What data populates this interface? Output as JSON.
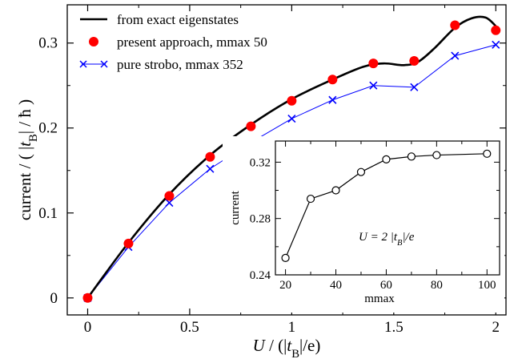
{
  "chart_data": [
    {
      "type": "line",
      "xlabel": "U / (|t_B|/e)",
      "ylabel": "current / ( e |t_B| / ħ )",
      "xlim": [
        -0.1,
        2.05
      ],
      "ylim": [
        -0.02,
        0.345
      ],
      "xticks": [
        0,
        0.5,
        1,
        1.5,
        2
      ],
      "xtick_labels": [
        "0",
        "0.5",
        "1",
        "1.5",
        "2"
      ],
      "yticks": [
        0,
        0.1,
        0.2,
        0.3
      ],
      "ytick_labels": [
        "0",
        "0.1",
        "0.2",
        "0.3"
      ],
      "legend_position": "top-left",
      "series": [
        {
          "name": "from exact eigenstates",
          "style": "line",
          "color": "#000000",
          "x": [
            0,
            0.2,
            0.4,
            0.6,
            0.8,
            1.0,
            1.2,
            1.35,
            1.45,
            1.55,
            1.62,
            1.7,
            1.8,
            1.88,
            1.95,
            2.0
          ],
          "y": [
            0,
            0.065,
            0.122,
            0.168,
            0.204,
            0.234,
            0.257,
            0.272,
            0.276,
            0.274,
            0.278,
            0.294,
            0.318,
            0.329,
            0.33,
            0.32
          ]
        },
        {
          "name": "present approach, mmax 50",
          "style": "markers",
          "color": "#ff0000",
          "x": [
            0,
            0.2,
            0.4,
            0.6,
            0.8,
            1.0,
            1.2,
            1.4,
            1.6,
            1.8,
            2.0
          ],
          "y": [
            0,
            0.064,
            0.12,
            0.166,
            0.202,
            0.232,
            0.257,
            0.276,
            0.279,
            0.321,
            0.315
          ]
        },
        {
          "name": "pure strobo, mmax 352",
          "style": "line+markers",
          "color": "#0000ff",
          "x": [
            0,
            0.2,
            0.4,
            0.6,
            0.8,
            1.0,
            1.2,
            1.4,
            1.6,
            1.8,
            2.0
          ],
          "y": [
            0,
            0.06,
            0.112,
            0.152,
            0.183,
            0.211,
            0.233,
            0.25,
            0.248,
            0.285,
            0.298
          ]
        }
      ]
    },
    {
      "type": "line",
      "xlabel": "mmax",
      "ylabel": "current",
      "annotation": "U = 2 |t_B|/e",
      "xlim": [
        16,
        105
      ],
      "ylim": [
        0.24,
        0.335
      ],
      "xticks": [
        20,
        40,
        60,
        80,
        100
      ],
      "xtick_labels": [
        "20",
        "40",
        "60",
        "80",
        "100"
      ],
      "yticks": [
        0.24,
        0.28,
        0.32
      ],
      "ytick_labels": [
        "0.24",
        "0.28",
        "0.32"
      ],
      "series": [
        {
          "style": "line+open-markers",
          "color": "#000000",
          "x": [
            20,
            30,
            40,
            50,
            60,
            70,
            80,
            100
          ],
          "y": [
            0.252,
            0.294,
            0.3,
            0.313,
            0.322,
            0.324,
            0.325,
            0.326
          ]
        }
      ]
    }
  ]
}
